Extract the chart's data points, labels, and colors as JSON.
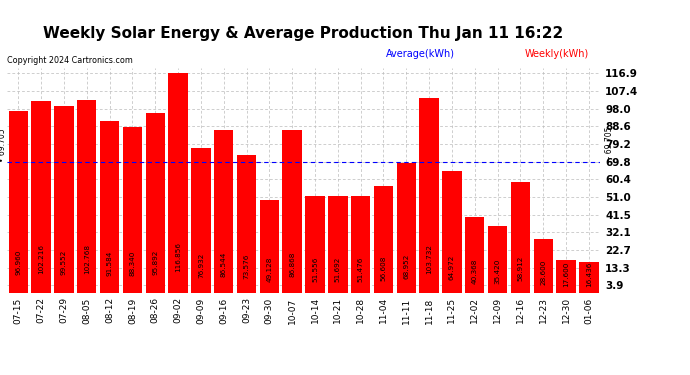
{
  "title": "Weekly Solar Energy & Average Production Thu Jan 11 16:22",
  "copyright": "Copyright 2024 Cartronics.com",
  "legend_avg": "Average(kWh)",
  "legend_weekly": "Weekly(kWh)",
  "average_value": 69.705,
  "categories": [
    "07-15",
    "07-22",
    "07-29",
    "08-05",
    "08-12",
    "08-19",
    "08-26",
    "09-02",
    "09-09",
    "09-16",
    "09-23",
    "09-30",
    "10-07",
    "10-14",
    "10-21",
    "10-28",
    "11-04",
    "11-11",
    "11-18",
    "11-25",
    "12-02",
    "12-09",
    "12-16",
    "12-23",
    "12-30",
    "01-06"
  ],
  "values": [
    96.96,
    102.216,
    99.552,
    102.768,
    91.584,
    88.34,
    95.892,
    116.856,
    76.932,
    86.544,
    73.576,
    49.128,
    86.868,
    51.556,
    51.692,
    51.476,
    56.608,
    68.952,
    103.732,
    64.972,
    40.368,
    35.42,
    58.912,
    28.6,
    17.6,
    16.436
  ],
  "bar_color": "#ff0000",
  "avg_line_color": "#0000ff",
  "yticks": [
    3.9,
    13.3,
    22.7,
    32.1,
    41.5,
    51.0,
    60.4,
    69.8,
    79.2,
    88.6,
    98.0,
    107.4,
    116.9
  ],
  "ylim": [
    0,
    120
  ],
  "background_color": "#ffffff",
  "grid_color": "#bbbbbb",
  "title_fontsize": 11,
  "bar_label_fontsize": 5.2,
  "xtick_fontsize": 6.5,
  "ytick_fontsize": 7.5
}
